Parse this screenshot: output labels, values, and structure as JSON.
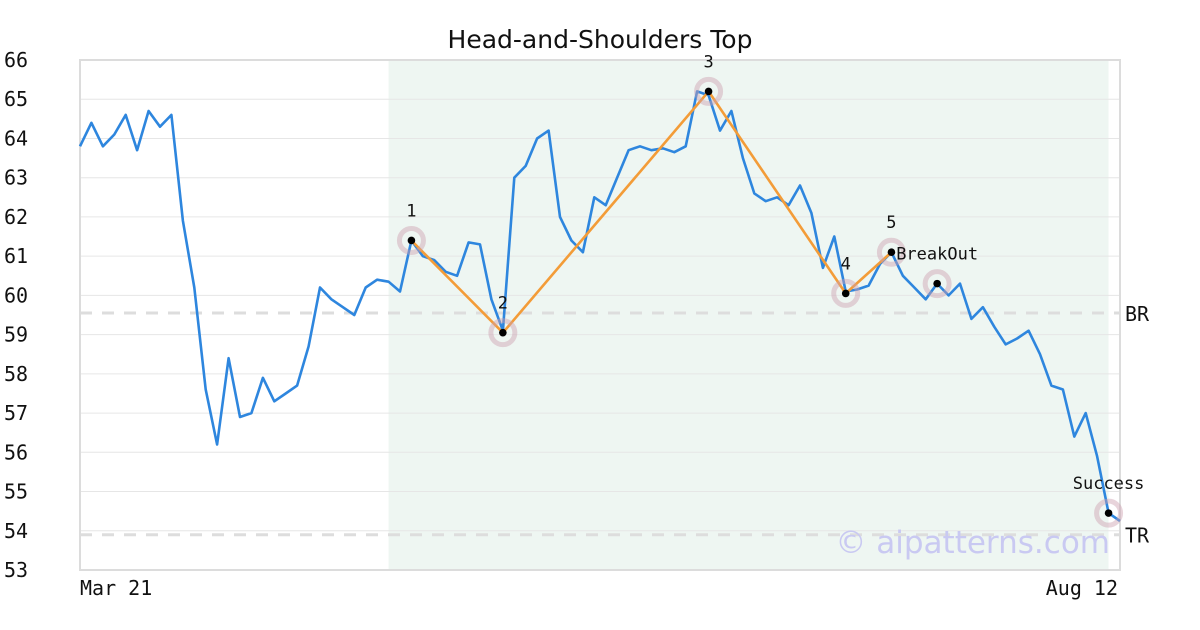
{
  "chart_data": {
    "type": "line",
    "title": "Head-and-Shoulders Top",
    "x_start_label": "Mar 21",
    "x_end_label": "Aug 12",
    "ylim": [
      53,
      66
    ],
    "y_ticks": [
      53,
      54,
      55,
      56,
      57,
      58,
      59,
      60,
      61,
      62,
      63,
      64,
      65,
      66
    ],
    "grid": true,
    "series": [
      {
        "color": "#2e86de",
        "values": [
          63.8,
          64.4,
          63.8,
          64.1,
          64.6,
          63.7,
          64.7,
          64.3,
          64.6,
          61.9,
          60.2,
          57.6,
          56.2,
          58.4,
          56.9,
          57.0,
          57.9,
          57.3,
          57.5,
          57.7,
          58.7,
          60.2,
          59.9,
          59.7,
          59.5,
          60.2,
          60.4,
          60.35,
          60.1,
          61.4,
          61.0,
          60.9,
          60.6,
          60.5,
          61.35,
          61.3,
          59.9,
          59.1,
          63.0,
          63.3,
          64.0,
          64.2,
          62.0,
          61.4,
          61.1,
          62.5,
          62.3,
          63.0,
          63.7,
          63.8,
          63.7,
          63.75,
          63.65,
          63.8,
          65.2,
          65.1,
          64.2,
          64.7,
          63.5,
          62.6,
          62.4,
          62.5,
          62.3,
          62.8,
          62.1,
          60.7,
          61.5,
          60.1,
          60.15,
          60.25,
          60.8,
          61.1,
          60.5,
          60.2,
          59.9,
          60.3,
          60.0,
          60.3,
          59.4,
          59.7,
          59.2,
          58.75,
          58.9,
          59.1,
          58.5,
          57.7,
          57.6,
          56.4,
          57.0,
          55.9,
          54.45,
          54.25
        ]
      }
    ],
    "pattern": {
      "color": "#f39c38",
      "points": [
        {
          "label": "1",
          "index": 29,
          "value": 61.4
        },
        {
          "label": "2",
          "index": 37,
          "value": 59.05
        },
        {
          "label": "3",
          "index": 55,
          "value": 65.2
        },
        {
          "label": "4",
          "index": 67,
          "value": 60.05
        },
        {
          "label": "5",
          "index": 71,
          "value": 61.1
        }
      ]
    },
    "markers": [
      {
        "label": "BreakOut",
        "index": 75,
        "value": 60.3
      },
      {
        "label": "Success",
        "index": 90,
        "value": 54.45
      }
    ],
    "levels": [
      {
        "label": "BR",
        "value": 59.55
      },
      {
        "label": "TR",
        "value": 53.9
      }
    ],
    "highlight_range": {
      "start_index": 27,
      "end_index": 90,
      "color": "#eef6f2"
    }
  },
  "watermark": "© aipatterns.com"
}
